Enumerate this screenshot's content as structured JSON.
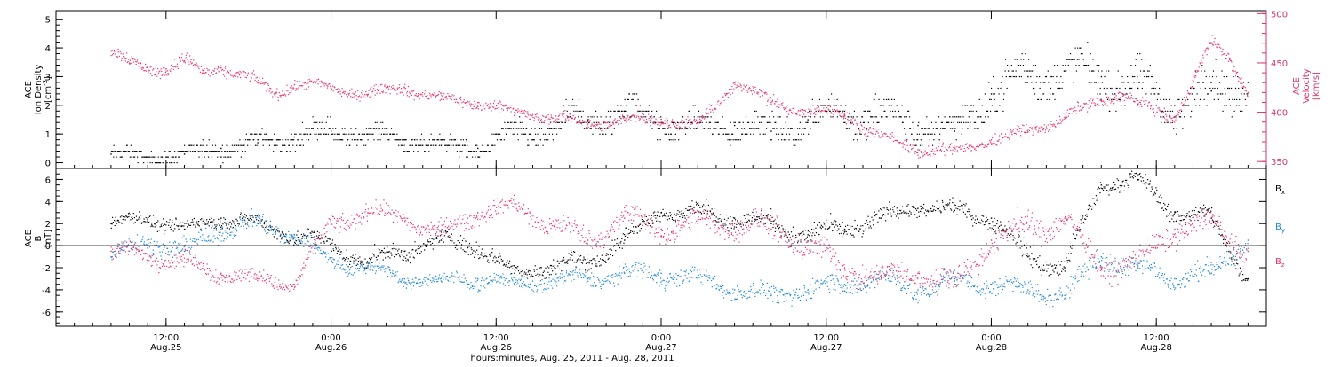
{
  "colors": {
    "black": "#000000",
    "velocity_red": "#e8356b",
    "by_blue": "#1f86d8",
    "bz_red": "#e8356b",
    "axis_red": "#d9336b"
  },
  "chart_data": [
    {
      "type": "scatter",
      "panel": "plasma",
      "ylabel": {
        "line1": "ACE",
        "line2": "Ion Density",
        "unit_html": "[cm-3]"
      },
      "ylabel_right": {
        "line1": "ACE",
        "line2": "Velocity",
        "unit": "[km/s]"
      },
      "ylim": [
        -0.2,
        5.3
      ],
      "yticks": [
        0,
        1,
        2,
        3,
        4,
        5
      ],
      "y2lim": [
        343,
        503
      ],
      "y2ticks": [
        350,
        400,
        450,
        500
      ],
      "series": [
        {
          "name": "",
          "axis": "left",
          "color": "black",
          "x_hours": [
            0,
            4,
            8,
            12,
            16,
            20,
            24,
            28,
            32,
            36,
            40,
            44,
            48,
            52,
            56,
            60,
            64,
            68,
            72,
            76,
            80,
            84,
            88,
            92,
            96,
            100,
            104,
            108,
            112,
            116,
            120,
            124
          ],
          "values": [
            0.3,
            0.2,
            0.3,
            0.5,
            0.7,
            0.9,
            1.1,
            1.0,
            0.8,
            0.6,
            0.5,
            1.0,
            1.2,
            1.5,
            1.8,
            1.4,
            1.2,
            1.3,
            1.1,
            1.5,
            1.8,
            1.6,
            1.3,
            1.1,
            2.4,
            3.0,
            3.2,
            3.0,
            2.6,
            2.0,
            2.5,
            2.8
          ],
          "spread": [
            0.35,
            0.3,
            0.4,
            0.5,
            0.5,
            0.6,
            0.6,
            0.5,
            0.5,
            0.45,
            0.4,
            0.6,
            0.8,
            0.9,
            0.9,
            0.8,
            0.7,
            0.8,
            0.8,
            0.9,
            1.0,
            1.0,
            0.9,
            0.8,
            1.2,
            1.2,
            1.1,
            1.1,
            1.2,
            1.2,
            1.2,
            1.2
          ]
        },
        {
          "name": "",
          "axis": "right",
          "color": "velocity_red",
          "x_hours": [
            0,
            2,
            4,
            6,
            8,
            10,
            12,
            14,
            16,
            18,
            20,
            24,
            28,
            32,
            36,
            40,
            44,
            48,
            52,
            56,
            60,
            64,
            68,
            70,
            72,
            76,
            80,
            84,
            88,
            92,
            96,
            100,
            104,
            108,
            110,
            112,
            116,
            118,
            120,
            122,
            124
          ],
          "values": [
            462,
            450,
            445,
            444,
            452,
            440,
            445,
            438,
            430,
            420,
            428,
            425,
            418,
            425,
            413,
            410,
            400,
            395,
            388,
            392,
            393,
            385,
            430,
            422,
            410,
            400,
            398,
            375,
            362,
            360,
            372,
            380,
            395,
            412,
            420,
            408,
            395,
            430,
            470,
            455,
            420
          ],
          "spread": [
            10,
            10,
            10,
            9,
            10,
            10,
            9,
            8,
            9,
            9,
            9,
            9,
            9,
            9,
            9,
            9,
            9,
            9,
            9,
            9,
            9,
            9,
            9,
            9,
            9,
            9,
            9,
            9,
            9,
            9,
            9,
            9,
            9,
            9,
            9,
            9,
            9,
            9,
            9,
            9,
            9
          ]
        }
      ]
    },
    {
      "type": "scatter",
      "panel": "magnetic-field",
      "ylabel": {
        "line1": "ACE",
        "line2": "B",
        "unit": "[nT]"
      },
      "ylim": [
        -7.3,
        7.0
      ],
      "yticks": [
        -6,
        -4,
        -2,
        0,
        2,
        4,
        6
      ],
      "zero_line": 0,
      "series": [
        {
          "name": "B",
          "sub": "x",
          "color": "black",
          "x_hours": [
            0,
            4,
            8,
            12,
            16,
            20,
            24,
            28,
            32,
            36,
            40,
            44,
            48,
            52,
            56,
            60,
            64,
            68,
            72,
            76,
            80,
            84,
            88,
            92,
            96,
            100,
            104,
            108,
            112,
            116,
            120,
            124
          ],
          "values": [
            2.0,
            2.5,
            1.5,
            2.5,
            2.0,
            1.0,
            0.0,
            -1.5,
            -0.5,
            0.5,
            0.0,
            -2.5,
            -1.8,
            -1.5,
            0.5,
            3.0,
            3.2,
            2.5,
            2.0,
            1.0,
            1.5,
            2.5,
            3.5,
            3.2,
            2.5,
            -1.0,
            -2.0,
            5.5,
            6.0,
            3.0,
            2.5,
            -3.0
          ],
          "spread": [
            0.8,
            1.0,
            1.0,
            1.0,
            1.0,
            1.2,
            1.2,
            1.2,
            1.2,
            1.2,
            1.2,
            1.0,
            1.2,
            1.2,
            1.4,
            1.0,
            1.0,
            1.2,
            1.4,
            1.4,
            1.4,
            1.2,
            1.0,
            1.0,
            1.2,
            1.4,
            1.4,
            1.0,
            1.0,
            1.2,
            1.2,
            1.4
          ]
        },
        {
          "name": "B",
          "sub": "y",
          "color": "by_blue",
          "x_hours": [
            0,
            4,
            8,
            12,
            16,
            20,
            24,
            28,
            32,
            36,
            40,
            44,
            48,
            52,
            56,
            60,
            64,
            68,
            72,
            76,
            80,
            84,
            88,
            92,
            96,
            100,
            104,
            108,
            112,
            116,
            120,
            124
          ],
          "values": [
            -1.0,
            0.5,
            -0.5,
            1.5,
            2.0,
            1.0,
            -1.5,
            -2.0,
            -3.0,
            -3.2,
            -3.0,
            -3.5,
            -3.2,
            -3.0,
            -2.5,
            -2.5,
            -3.0,
            -4.0,
            -4.5,
            -4.0,
            -3.5,
            -3.0,
            -4.0,
            -3.2,
            -3.5,
            -4.0,
            -4.5,
            -1.0,
            -2.0,
            -3.0,
            -2.5,
            0.5
          ],
          "spread": [
            1.2,
            1.4,
            1.4,
            1.2,
            1.2,
            1.2,
            1.2,
            1.0,
            0.8,
            0.8,
            1.2,
            1.0,
            1.2,
            1.2,
            1.2,
            1.4,
            1.2,
            1.2,
            1.2,
            1.4,
            1.4,
            1.4,
            1.4,
            1.2,
            1.4,
            1.4,
            1.4,
            1.6,
            1.4,
            1.4,
            1.4,
            1.4
          ]
        },
        {
          "name": "B",
          "sub": "z",
          "color": "bz_red",
          "x_hours": [
            0,
            4,
            8,
            12,
            16,
            20,
            24,
            28,
            32,
            36,
            40,
            44,
            48,
            52,
            56,
            60,
            64,
            68,
            72,
            76,
            80,
            84,
            88,
            92,
            96,
            100,
            104,
            108,
            112,
            116,
            120,
            124
          ],
          "values": [
            -0.5,
            -0.8,
            -1.5,
            -2.5,
            -3.0,
            -3.5,
            2.0,
            3.0,
            2.5,
            1.0,
            3.0,
            3.5,
            2.0,
            0.5,
            2.5,
            1.5,
            2.0,
            2.0,
            1.5,
            0.0,
            -2.0,
            -3.0,
            -2.5,
            -3.5,
            0.5,
            1.5,
            2.5,
            -2.0,
            -1.5,
            1.5,
            2.0,
            -0.5
          ],
          "spread": [
            1.2,
            1.2,
            1.2,
            1.2,
            1.0,
            1.0,
            1.4,
            1.2,
            1.2,
            1.4,
            1.2,
            1.2,
            1.6,
            1.6,
            1.6,
            1.6,
            1.6,
            1.6,
            1.8,
            1.8,
            1.8,
            1.6,
            1.4,
            1.6,
            1.8,
            2.0,
            1.8,
            1.6,
            1.6,
            1.6,
            1.6,
            1.6
          ]
        }
      ]
    }
  ],
  "x_axis": {
    "range_hours": [
      -6,
      126
    ],
    "ticks": [
      {
        "hour": 6,
        "time": "12:00",
        "day": "Aug.25"
      },
      {
        "hour": 24,
        "time": "0:00",
        "day": "Aug.26"
      },
      {
        "hour": 42,
        "time": "12:00",
        "day": "Aug.26"
      },
      {
        "hour": 60,
        "time": "0:00",
        "day": "Aug.27"
      },
      {
        "hour": 78,
        "time": "12:00",
        "day": "Aug.27"
      },
      {
        "hour": 96,
        "time": "0:00",
        "day": "Aug.28"
      },
      {
        "hour": 114,
        "time": "12:00",
        "day": "Aug.28"
      }
    ],
    "label": "hours:minutes, Aug. 25, 2011 - Aug. 28, 2011"
  }
}
